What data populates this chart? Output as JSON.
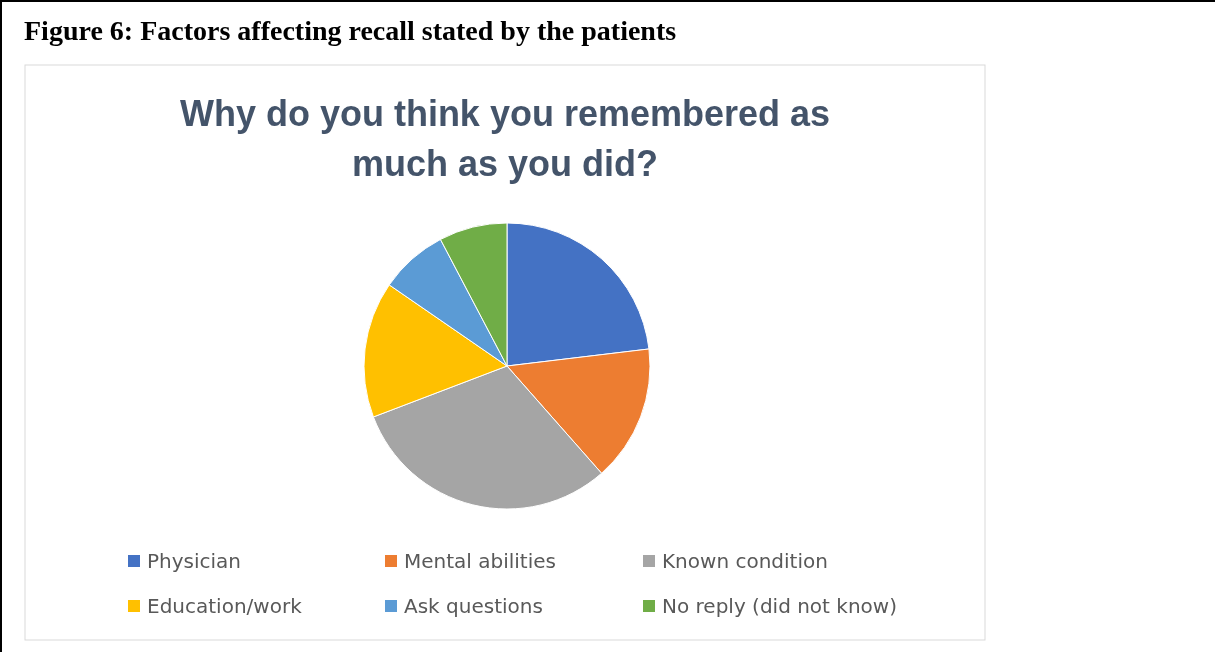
{
  "chart_data": {
    "type": "pie",
    "title": "Why do you think you remembered as much as you did?",
    "annotations": [
      "Figure 6: Factors affecting recall stated by the patients"
    ],
    "categories": [
      "Physician",
      "Mental abilities",
      "Known condition",
      "Education/work",
      "Ask questions",
      "No reply (did not know)"
    ],
    "values": [
      23.1,
      15.4,
      30.7,
      15.4,
      7.7,
      7.7
    ],
    "colors": [
      "#4472c4",
      "#ed7d31",
      "#a5a5a5",
      "#ffc000",
      "#5b9bd5",
      "#70ad47"
    ],
    "legend": "bottom"
  }
}
